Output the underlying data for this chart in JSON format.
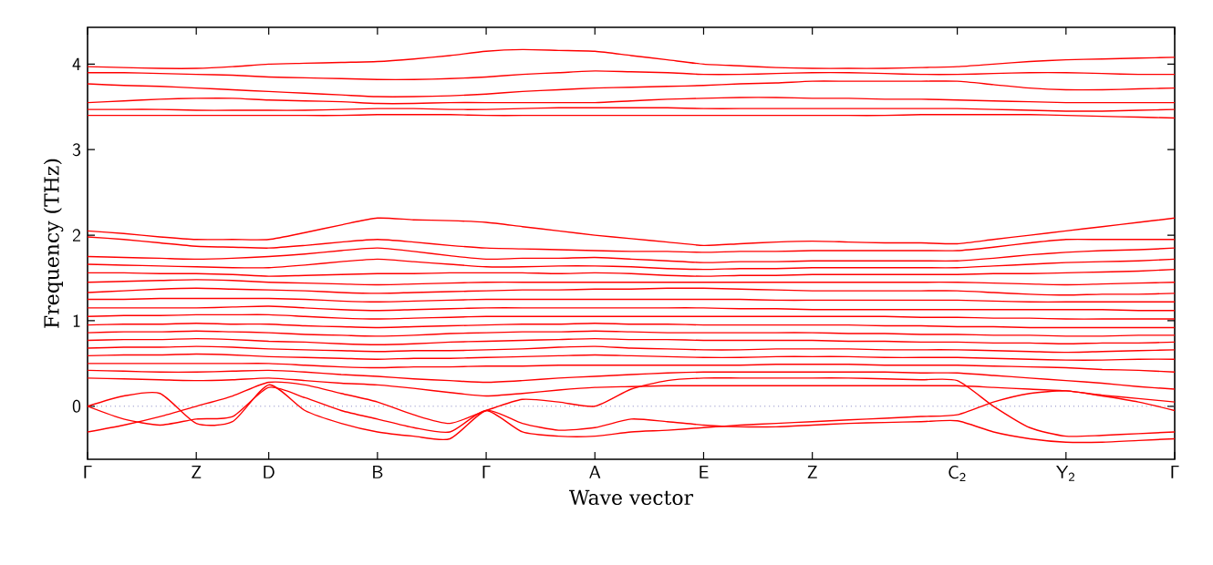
{
  "chart_data": {
    "type": "line",
    "xlabel": "Wave vector",
    "ylabel": "Frequency (THz)",
    "ylim": [
      -0.62,
      4.43
    ],
    "categories": [
      "Γ",
      null,
      null,
      "Z",
      null,
      "D",
      null,
      null,
      "B",
      null,
      null,
      "Γ",
      null,
      null,
      "A",
      null,
      null,
      "E",
      null,
      null,
      "Z",
      null,
      null,
      null,
      "C$_{2}$",
      null,
      null,
      "Y$_{2}$",
      null,
      null,
      "Γ"
    ],
    "yticks": [
      0,
      1,
      2,
      3,
      4
    ],
    "ref_lines": [
      {
        "axis": "y",
        "value": 0,
        "color": "#8080c0",
        "line_style": "dotted"
      }
    ],
    "series": [
      {
        "color": "#ff0000",
        "values": [
          3.97,
          3.96,
          3.95,
          3.95,
          3.97,
          4.0,
          4.01,
          4.02,
          4.03,
          4.06,
          4.1,
          4.15,
          4.17,
          4.16,
          4.15,
          4.1,
          4.05,
          4.0,
          3.98,
          3.96,
          3.95,
          3.95,
          3.95,
          3.96,
          3.97,
          4.0,
          4.03,
          4.05,
          4.06,
          4.07,
          4.08
        ]
      },
      {
        "color": "#ff0000",
        "values": [
          3.9,
          3.9,
          3.89,
          3.88,
          3.87,
          3.85,
          3.84,
          3.83,
          3.82,
          3.82,
          3.83,
          3.85,
          3.88,
          3.9,
          3.92,
          3.91,
          3.9,
          3.88,
          3.88,
          3.89,
          3.9,
          3.9,
          3.89,
          3.88,
          3.88,
          3.89,
          3.9,
          3.9,
          3.89,
          3.88,
          3.88
        ]
      },
      {
        "color": "#ff0000",
        "values": [
          3.77,
          3.75,
          3.74,
          3.72,
          3.7,
          3.68,
          3.66,
          3.64,
          3.62,
          3.62,
          3.63,
          3.65,
          3.68,
          3.7,
          3.72,
          3.73,
          3.74,
          3.75,
          3.77,
          3.78,
          3.8,
          3.8,
          3.8,
          3.8,
          3.8,
          3.76,
          3.72,
          3.7,
          3.7,
          3.71,
          3.72
        ]
      },
      {
        "color": "#ff0000",
        "values": [
          3.55,
          3.57,
          3.59,
          3.6,
          3.6,
          3.58,
          3.57,
          3.56,
          3.54,
          3.54,
          3.55,
          3.55,
          3.55,
          3.55,
          3.55,
          3.57,
          3.59,
          3.6,
          3.61,
          3.61,
          3.6,
          3.6,
          3.59,
          3.59,
          3.58,
          3.57,
          3.56,
          3.55,
          3.55,
          3.55,
          3.55
        ]
      },
      {
        "color": "#ff0000",
        "values": [
          3.47,
          3.47,
          3.47,
          3.46,
          3.46,
          3.46,
          3.46,
          3.47,
          3.48,
          3.48,
          3.47,
          3.47,
          3.48,
          3.49,
          3.49,
          3.49,
          3.49,
          3.48,
          3.48,
          3.48,
          3.48,
          3.48,
          3.48,
          3.48,
          3.48,
          3.47,
          3.46,
          3.45,
          3.45,
          3.46,
          3.47
        ]
      },
      {
        "color": "#ff0000",
        "values": [
          3.4,
          3.4,
          3.4,
          3.4,
          3.4,
          3.4,
          3.4,
          3.4,
          3.41,
          3.41,
          3.41,
          3.4,
          3.4,
          3.4,
          3.4,
          3.4,
          3.4,
          3.4,
          3.4,
          3.4,
          3.4,
          3.4,
          3.4,
          3.41,
          3.41,
          3.41,
          3.41,
          3.4,
          3.39,
          3.38,
          3.37
        ]
      },
      {
        "color": "#ff0000",
        "values": [
          2.05,
          2.02,
          1.98,
          1.95,
          1.95,
          1.95,
          2.03,
          2.12,
          2.2,
          2.18,
          2.17,
          2.15,
          2.1,
          2.05,
          2.0,
          1.96,
          1.92,
          1.88,
          1.9,
          1.92,
          1.93,
          1.92,
          1.91,
          1.91,
          1.9,
          1.95,
          2.0,
          2.05,
          2.1,
          2.15,
          2.2
        ]
      },
      {
        "color": "#ff0000",
        "values": [
          1.98,
          1.95,
          1.91,
          1.87,
          1.86,
          1.85,
          1.88,
          1.92,
          1.95,
          1.92,
          1.88,
          1.85,
          1.84,
          1.83,
          1.82,
          1.81,
          1.81,
          1.8,
          1.81,
          1.81,
          1.82,
          1.82,
          1.82,
          1.82,
          1.82,
          1.86,
          1.91,
          1.95,
          1.95,
          1.95,
          1.95
        ]
      },
      {
        "color": "#ff0000",
        "values": [
          1.75,
          1.74,
          1.73,
          1.72,
          1.73,
          1.75,
          1.78,
          1.82,
          1.85,
          1.81,
          1.76,
          1.72,
          1.73,
          1.73,
          1.74,
          1.72,
          1.7,
          1.68,
          1.69,
          1.69,
          1.7,
          1.7,
          1.7,
          1.7,
          1.7,
          1.73,
          1.77,
          1.8,
          1.82,
          1.83,
          1.85
        ]
      },
      {
        "color": "#ff0000",
        "values": [
          1.66,
          1.65,
          1.64,
          1.63,
          1.62,
          1.62,
          1.65,
          1.69,
          1.72,
          1.69,
          1.66,
          1.63,
          1.63,
          1.64,
          1.64,
          1.63,
          1.61,
          1.6,
          1.61,
          1.61,
          1.62,
          1.62,
          1.62,
          1.62,
          1.62,
          1.64,
          1.66,
          1.68,
          1.69,
          1.7,
          1.72
        ]
      },
      {
        "color": "#ff0000",
        "values": [
          1.56,
          1.56,
          1.55,
          1.55,
          1.54,
          1.52,
          1.53,
          1.54,
          1.55,
          1.55,
          1.56,
          1.56,
          1.56,
          1.55,
          1.56,
          1.55,
          1.53,
          1.52,
          1.53,
          1.53,
          1.54,
          1.54,
          1.54,
          1.54,
          1.54,
          1.55,
          1.55,
          1.56,
          1.57,
          1.58,
          1.6
        ]
      },
      {
        "color": "#ff0000",
        "values": [
          1.45,
          1.46,
          1.47,
          1.48,
          1.47,
          1.45,
          1.44,
          1.43,
          1.42,
          1.43,
          1.44,
          1.45,
          1.45,
          1.45,
          1.45,
          1.45,
          1.45,
          1.45,
          1.45,
          1.45,
          1.45,
          1.45,
          1.45,
          1.45,
          1.45,
          1.44,
          1.43,
          1.42,
          1.43,
          1.44,
          1.45
        ]
      },
      {
        "color": "#ff0000",
        "values": [
          1.33,
          1.35,
          1.37,
          1.38,
          1.37,
          1.36,
          1.35,
          1.33,
          1.32,
          1.33,
          1.34,
          1.35,
          1.36,
          1.36,
          1.37,
          1.37,
          1.38,
          1.38,
          1.37,
          1.36,
          1.35,
          1.35,
          1.35,
          1.35,
          1.35,
          1.33,
          1.31,
          1.3,
          1.31,
          1.31,
          1.32
        ]
      },
      {
        "color": "#ff0000",
        "values": [
          1.25,
          1.25,
          1.26,
          1.26,
          1.26,
          1.26,
          1.25,
          1.23,
          1.22,
          1.23,
          1.24,
          1.25,
          1.25,
          1.25,
          1.25,
          1.25,
          1.25,
          1.25,
          1.25,
          1.24,
          1.24,
          1.24,
          1.24,
          1.24,
          1.24,
          1.23,
          1.22,
          1.22,
          1.22,
          1.22,
          1.22
        ]
      },
      {
        "color": "#ff0000",
        "values": [
          1.15,
          1.15,
          1.15,
          1.15,
          1.16,
          1.17,
          1.15,
          1.13,
          1.12,
          1.13,
          1.14,
          1.15,
          1.15,
          1.15,
          1.15,
          1.15,
          1.15,
          1.15,
          1.14,
          1.14,
          1.13,
          1.13,
          1.13,
          1.13,
          1.13,
          1.13,
          1.13,
          1.13,
          1.13,
          1.12,
          1.12
        ]
      },
      {
        "color": "#ff0000",
        "values": [
          1.05,
          1.06,
          1.06,
          1.07,
          1.07,
          1.07,
          1.05,
          1.03,
          1.02,
          1.03,
          1.04,
          1.05,
          1.05,
          1.05,
          1.05,
          1.05,
          1.05,
          1.05,
          1.05,
          1.05,
          1.05,
          1.05,
          1.05,
          1.04,
          1.04,
          1.03,
          1.03,
          1.02,
          1.02,
          1.02,
          1.02
        ]
      },
      {
        "color": "#ff0000",
        "values": [
          0.95,
          0.96,
          0.96,
          0.97,
          0.96,
          0.96,
          0.94,
          0.93,
          0.92,
          0.93,
          0.94,
          0.95,
          0.96,
          0.96,
          0.97,
          0.96,
          0.96,
          0.95,
          0.95,
          0.95,
          0.95,
          0.95,
          0.94,
          0.94,
          0.93,
          0.93,
          0.92,
          0.92,
          0.92,
          0.92,
          0.92
        ]
      },
      {
        "color": "#ff0000",
        "values": [
          0.86,
          0.87,
          0.87,
          0.88,
          0.87,
          0.86,
          0.84,
          0.83,
          0.82,
          0.83,
          0.85,
          0.86,
          0.87,
          0.87,
          0.88,
          0.87,
          0.86,
          0.86,
          0.86,
          0.86,
          0.86,
          0.85,
          0.85,
          0.84,
          0.84,
          0.83,
          0.83,
          0.82,
          0.82,
          0.83,
          0.83
        ]
      },
      {
        "color": "#ff0000",
        "values": [
          0.77,
          0.78,
          0.78,
          0.79,
          0.78,
          0.76,
          0.75,
          0.73,
          0.72,
          0.73,
          0.75,
          0.76,
          0.77,
          0.78,
          0.79,
          0.78,
          0.78,
          0.77,
          0.77,
          0.77,
          0.77,
          0.76,
          0.76,
          0.75,
          0.75,
          0.74,
          0.74,
          0.73,
          0.74,
          0.74,
          0.75
        ]
      },
      {
        "color": "#ff0000",
        "values": [
          0.68,
          0.69,
          0.69,
          0.7,
          0.69,
          0.67,
          0.66,
          0.65,
          0.64,
          0.65,
          0.65,
          0.66,
          0.67,
          0.69,
          0.7,
          0.68,
          0.67,
          0.66,
          0.66,
          0.67,
          0.67,
          0.67,
          0.66,
          0.66,
          0.66,
          0.65,
          0.64,
          0.63,
          0.64,
          0.65,
          0.66
        ]
      },
      {
        "color": "#ff0000",
        "values": [
          0.59,
          0.6,
          0.6,
          0.61,
          0.6,
          0.58,
          0.57,
          0.56,
          0.55,
          0.56,
          0.56,
          0.57,
          0.58,
          0.59,
          0.6,
          0.59,
          0.58,
          0.57,
          0.57,
          0.58,
          0.58,
          0.58,
          0.57,
          0.57,
          0.57,
          0.56,
          0.55,
          0.54,
          0.54,
          0.55,
          0.55
        ]
      },
      {
        "color": "#ff0000",
        "values": [
          0.5,
          0.5,
          0.5,
          0.5,
          0.5,
          0.5,
          0.48,
          0.46,
          0.45,
          0.46,
          0.46,
          0.47,
          0.47,
          0.48,
          0.48,
          0.48,
          0.48,
          0.48,
          0.48,
          0.49,
          0.49,
          0.49,
          0.48,
          0.48,
          0.48,
          0.47,
          0.46,
          0.45,
          0.43,
          0.42,
          0.4
        ]
      },
      {
        "color": "#ff0000",
        "values": [
          0.42,
          0.41,
          0.4,
          0.4,
          0.41,
          0.42,
          0.4,
          0.37,
          0.35,
          0.32,
          0.3,
          0.28,
          0.3,
          0.33,
          0.35,
          0.37,
          0.39,
          0.4,
          0.4,
          0.4,
          0.4,
          0.4,
          0.4,
          0.39,
          0.39,
          0.36,
          0.33,
          0.3,
          0.27,
          0.23,
          0.2
        ]
      },
      {
        "color": "#ff0000",
        "values": [
          0.33,
          0.32,
          0.31,
          0.3,
          0.31,
          0.33,
          0.3,
          0.27,
          0.25,
          0.21,
          0.16,
          0.12,
          0.15,
          0.19,
          0.22,
          0.23,
          0.24,
          0.24,
          0.24,
          0.24,
          0.24,
          0.24,
          0.24,
          0.24,
          0.24,
          0.22,
          0.2,
          0.18,
          0.13,
          0.09,
          0.05
        ]
      },
      {
        "color": "#ff0000",
        "values": [
          0.0,
          -0.15,
          -0.22,
          -0.15,
          -0.12,
          0.22,
          0.1,
          -0.05,
          -0.15,
          -0.25,
          -0.3,
          -0.05,
          -0.3,
          -0.35,
          -0.35,
          -0.3,
          -0.28,
          -0.25,
          -0.22,
          -0.2,
          -0.18,
          -0.16,
          -0.14,
          -0.12,
          -0.1,
          0.05,
          0.15,
          0.18,
          0.12,
          0.05,
          -0.05
        ]
      },
      {
        "color": "#ff0000",
        "values": [
          0.0,
          0.12,
          0.15,
          -0.2,
          -0.18,
          0.25,
          -0.05,
          -0.2,
          -0.3,
          -0.35,
          -0.38,
          -0.05,
          -0.2,
          -0.28,
          -0.25,
          -0.15,
          -0.18,
          -0.22,
          -0.24,
          -0.24,
          -0.22,
          -0.2,
          -0.19,
          -0.18,
          -0.17,
          -0.3,
          -0.38,
          -0.42,
          -0.42,
          -0.4,
          -0.38
        ]
      },
      {
        "color": "#ff0000",
        "values": [
          -0.3,
          -0.22,
          -0.12,
          0.0,
          0.12,
          0.28,
          0.25,
          0.15,
          0.05,
          -0.1,
          -0.2,
          -0.05,
          0.08,
          0.05,
          0.0,
          0.2,
          0.3,
          0.33,
          0.33,
          0.33,
          0.33,
          0.33,
          0.32,
          0.31,
          0.3,
          0.0,
          -0.25,
          -0.35,
          -0.34,
          -0.32,
          -0.3
        ]
      }
    ]
  }
}
